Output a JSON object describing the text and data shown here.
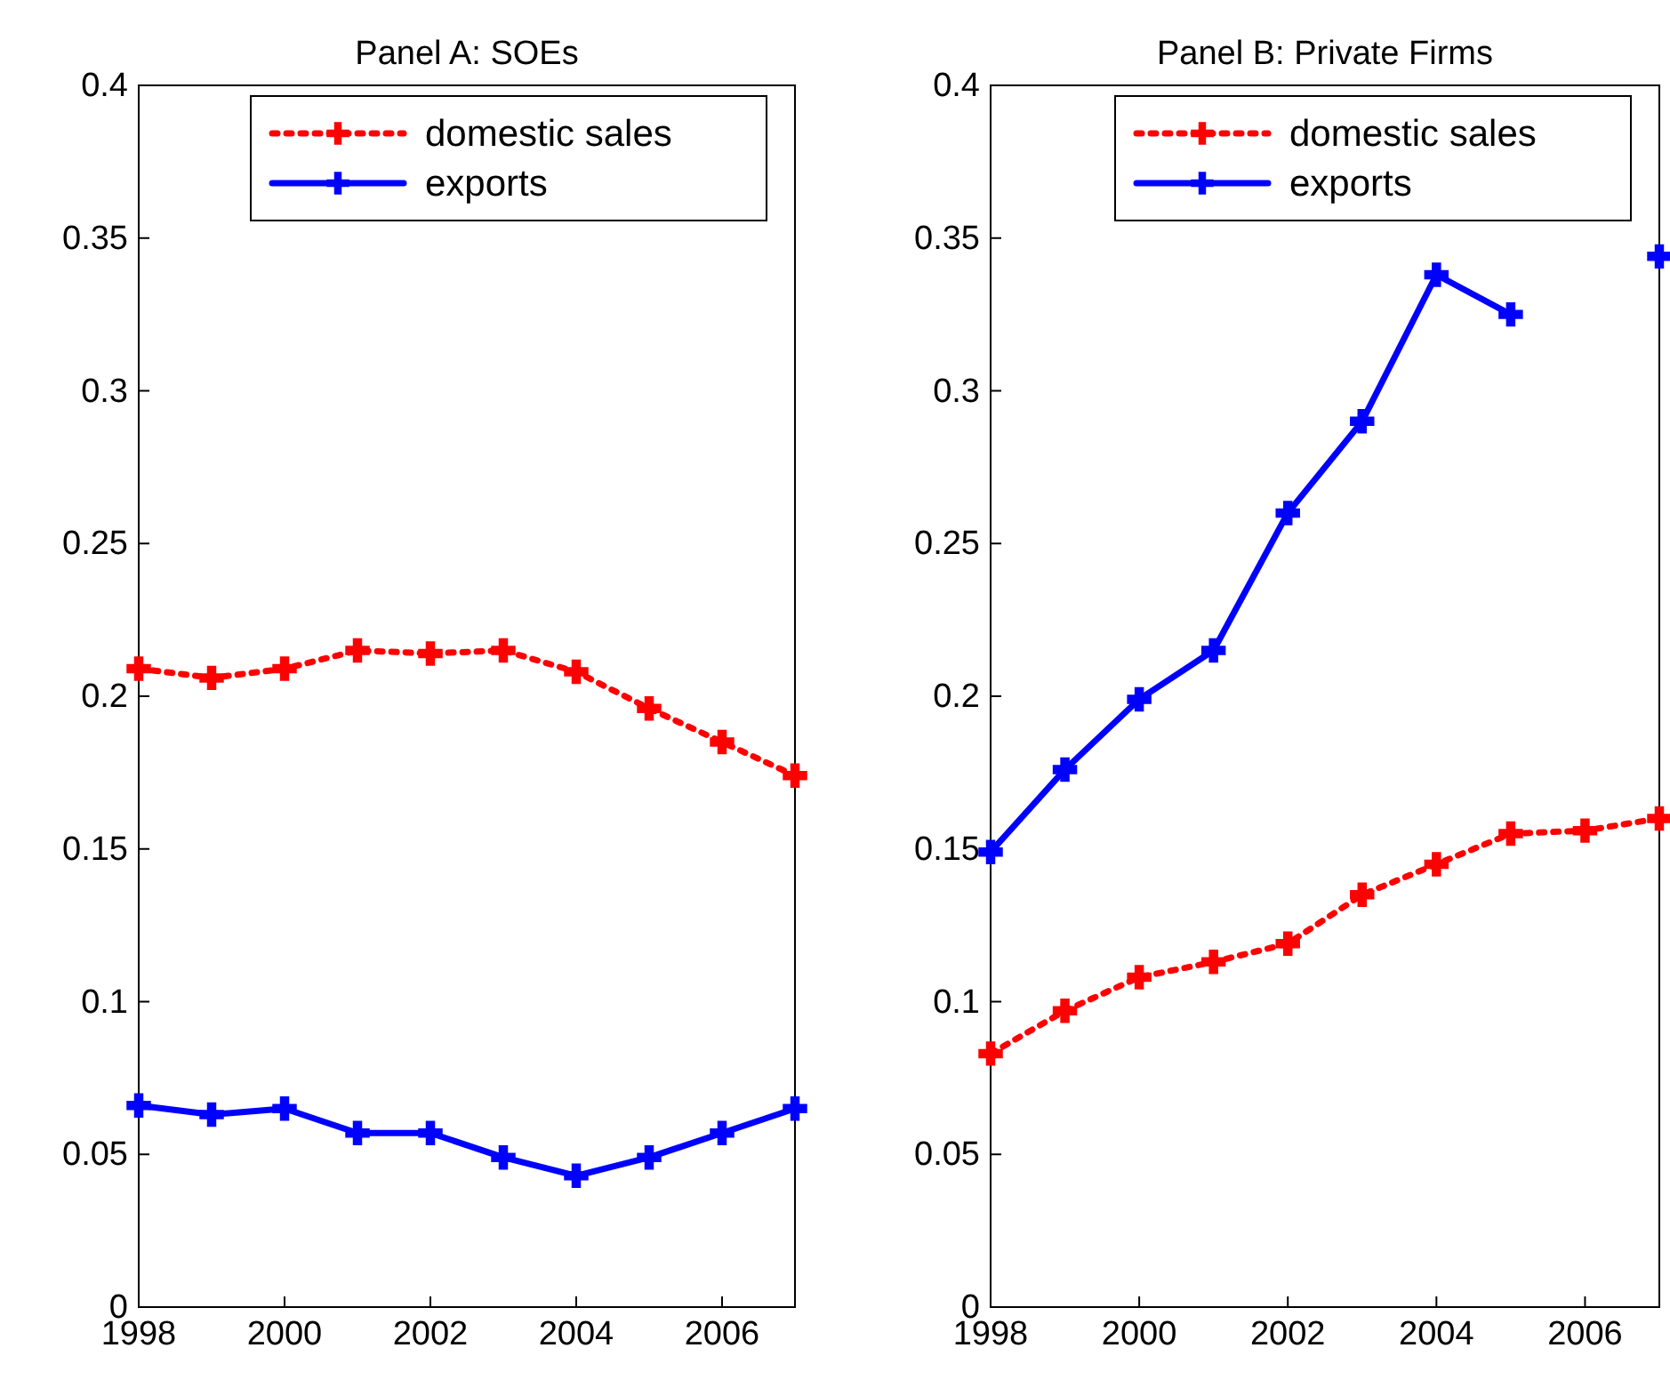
{
  "chart_data": [
    {
      "type": "line",
      "title": "Panel A: SOEs",
      "x": [
        1998,
        1999,
        2000,
        2001,
        2002,
        2003,
        2004,
        2005,
        2006,
        2007
      ],
      "series": [
        {
          "name": "domestic sales",
          "color": "#ff0000",
          "line_style": "dotted",
          "values": [
            0.209,
            0.206,
            0.209,
            0.215,
            0.214,
            0.215,
            0.208,
            0.196,
            0.185,
            0.174
          ]
        },
        {
          "name": "exports",
          "color": "#0000ff",
          "line_style": "solid",
          "values": [
            0.066,
            0.063,
            0.065,
            0.057,
            0.057,
            0.049,
            0.043,
            0.049,
            0.057,
            0.065
          ]
        }
      ],
      "xlim": [
        1998,
        2007
      ],
      "xticks": [
        1998,
        2000,
        2002,
        2004,
        2006
      ],
      "ylim": [
        0,
        0.4
      ],
      "yticks": [
        0,
        0.05,
        0.1,
        0.15,
        0.2,
        0.25,
        0.3,
        0.35,
        0.4
      ],
      "grid": false,
      "legend": "top right",
      "marker": "cross"
    },
    {
      "type": "line",
      "title": "Panel B: Private Firms",
      "x": [
        1998,
        1999,
        2000,
        2001,
        2002,
        2003,
        2004,
        2005,
        2006,
        2007
      ],
      "series": [
        {
          "name": "domestic sales",
          "color": "#ff0000",
          "line_style": "dotted",
          "values": [
            0.083,
            0.097,
            0.108,
            0.113,
            0.119,
            0.135,
            0.145,
            0.155,
            0.156,
            0.16
          ]
        },
        {
          "name": "exports",
          "color": "#0000ff",
          "line_style": "solid",
          "values": [
            0.149,
            0.176,
            0.199,
            0.215,
            0.26,
            0.29,
            0.338,
            0.325,
            null,
            0.344
          ]
        }
      ],
      "xlim": [
        1998,
        2007
      ],
      "xticks": [
        1998,
        2000,
        2002,
        2004,
        2006
      ],
      "ylim": [
        0,
        0.4
      ],
      "yticks": [
        0,
        0.05,
        0.1,
        0.15,
        0.2,
        0.25,
        0.3,
        0.35,
        0.4
      ],
      "grid": false,
      "legend": "top right",
      "marker": "cross"
    }
  ]
}
